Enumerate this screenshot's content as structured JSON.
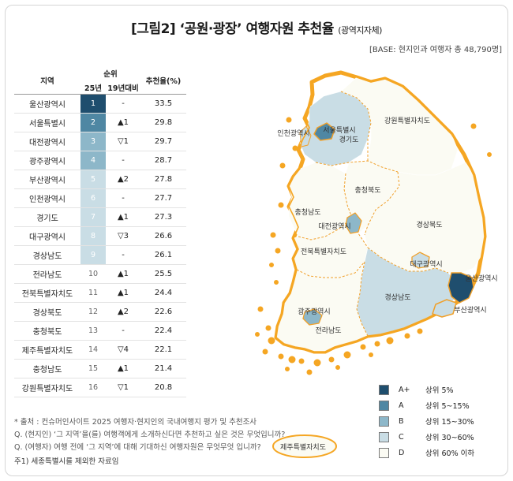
{
  "title": "[그림2] ‘공원·광장’ 여행자원 추천율",
  "title_sub": "(광역지자체)",
  "base_note": "[BASE: 현지인과 여행자 총 48,790명]",
  "colors": {
    "A+": "#1f4e6e",
    "A": "#4f87a3",
    "B": "#8db7c9",
    "C": "#c9dde5",
    "D": "#fbfbf3",
    "coast": "#f5a623",
    "border": "#f0a02a",
    "dash": "#f0a02a"
  },
  "chart_data": {
    "type": "table",
    "headers": {
      "region": "지역",
      "rank_group": "순위",
      "rank25": "25년",
      "yoy": "19년대비",
      "rate": "추천율(%)"
    },
    "rows": [
      {
        "region": "울산광역시",
        "rank": "1",
        "yoy": "-",
        "rate": "33.5",
        "grade": "A+"
      },
      {
        "region": "서울특별시",
        "rank": "2",
        "yoy": "▲1",
        "rate": "29.8",
        "grade": "A"
      },
      {
        "region": "대전광역시",
        "rank": "3",
        "yoy": "▽1",
        "rate": "29.7",
        "grade": "B"
      },
      {
        "region": "광주광역시",
        "rank": "4",
        "yoy": "-",
        "rate": "28.7",
        "grade": "B"
      },
      {
        "region": "부산광역시",
        "rank": "5",
        "yoy": "▲2",
        "rate": "27.8",
        "grade": "C"
      },
      {
        "region": "인천광역시",
        "rank": "6",
        "yoy": "-",
        "rate": "27.7",
        "grade": "C"
      },
      {
        "region": "경기도",
        "rank": "7",
        "yoy": "▲1",
        "rate": "27.3",
        "grade": "C"
      },
      {
        "region": "대구광역시",
        "rank": "8",
        "yoy": "▽3",
        "rate": "26.6",
        "grade": "C"
      },
      {
        "region": "경상남도",
        "rank": "9",
        "yoy": "-",
        "rate": "26.1",
        "grade": "C"
      },
      {
        "region": "전라남도",
        "rank": "10",
        "yoy": "▲1",
        "rate": "25.5",
        "grade": "D"
      },
      {
        "region": "전북특별자치도",
        "rank": "11",
        "yoy": "▲1",
        "rate": "24.4",
        "grade": "D"
      },
      {
        "region": "경상북도",
        "rank": "12",
        "yoy": "▲2",
        "rate": "22.6",
        "grade": "D"
      },
      {
        "region": "충청북도",
        "rank": "13",
        "yoy": "-",
        "rate": "22.4",
        "grade": "D"
      },
      {
        "region": "제주특별자치도",
        "rank": "14",
        "yoy": "▽4",
        "rate": "22.1",
        "grade": "D"
      },
      {
        "region": "충청남도",
        "rank": "15",
        "yoy": "▲1",
        "rate": "21.4",
        "grade": "D"
      },
      {
        "region": "강원특별자치도",
        "rank": "16",
        "yoy": "▽1",
        "rate": "20.8",
        "grade": "D"
      }
    ],
    "legend": [
      {
        "grade": "A+",
        "label": "상위 5%"
      },
      {
        "grade": "A",
        "label": "상위 5~15%"
      },
      {
        "grade": "B",
        "label": "상위 15~30%"
      },
      {
        "grade": "C",
        "label": "상위 30~60%"
      },
      {
        "grade": "D",
        "label": "상위 60% 이하"
      }
    ]
  },
  "map_labels": {
    "seoul": "서울특별시",
    "gyeonggi": "경기도",
    "incheon": "인천광역시",
    "gangwon": "강원특별자치도",
    "chungbuk": "충청북도",
    "chungnam": "충청남도",
    "daejeon": "대전광역시",
    "gyeongbuk": "경상북도",
    "daegu": "대구광역시",
    "jeonbuk": "전북특별자치도",
    "ulsan": "울산광역시",
    "gyeongnam": "경상남도",
    "busan": "부산광역시",
    "gwangju": "광주광역시",
    "jeonnam": "전라남도",
    "jeju": "제주특별자치도"
  },
  "notes": [
    "* 출처 : 컨슈머인사이트 2025 여행자·현지인의 국내여행지 평가 및 추천조사",
    "Q. (현지인) ‘그 지역’을(를) 여행객에게 소개하신다면 추천하고 싶은 것은 무엇입니까?",
    "Q. (여행자) 여행 전에 ‘그 지역’에 대해 기대하신 여행자원은 무엇무엇 입니까?"
  ],
  "footnote": "주1) 세종특별시를 제외한 자료임"
}
